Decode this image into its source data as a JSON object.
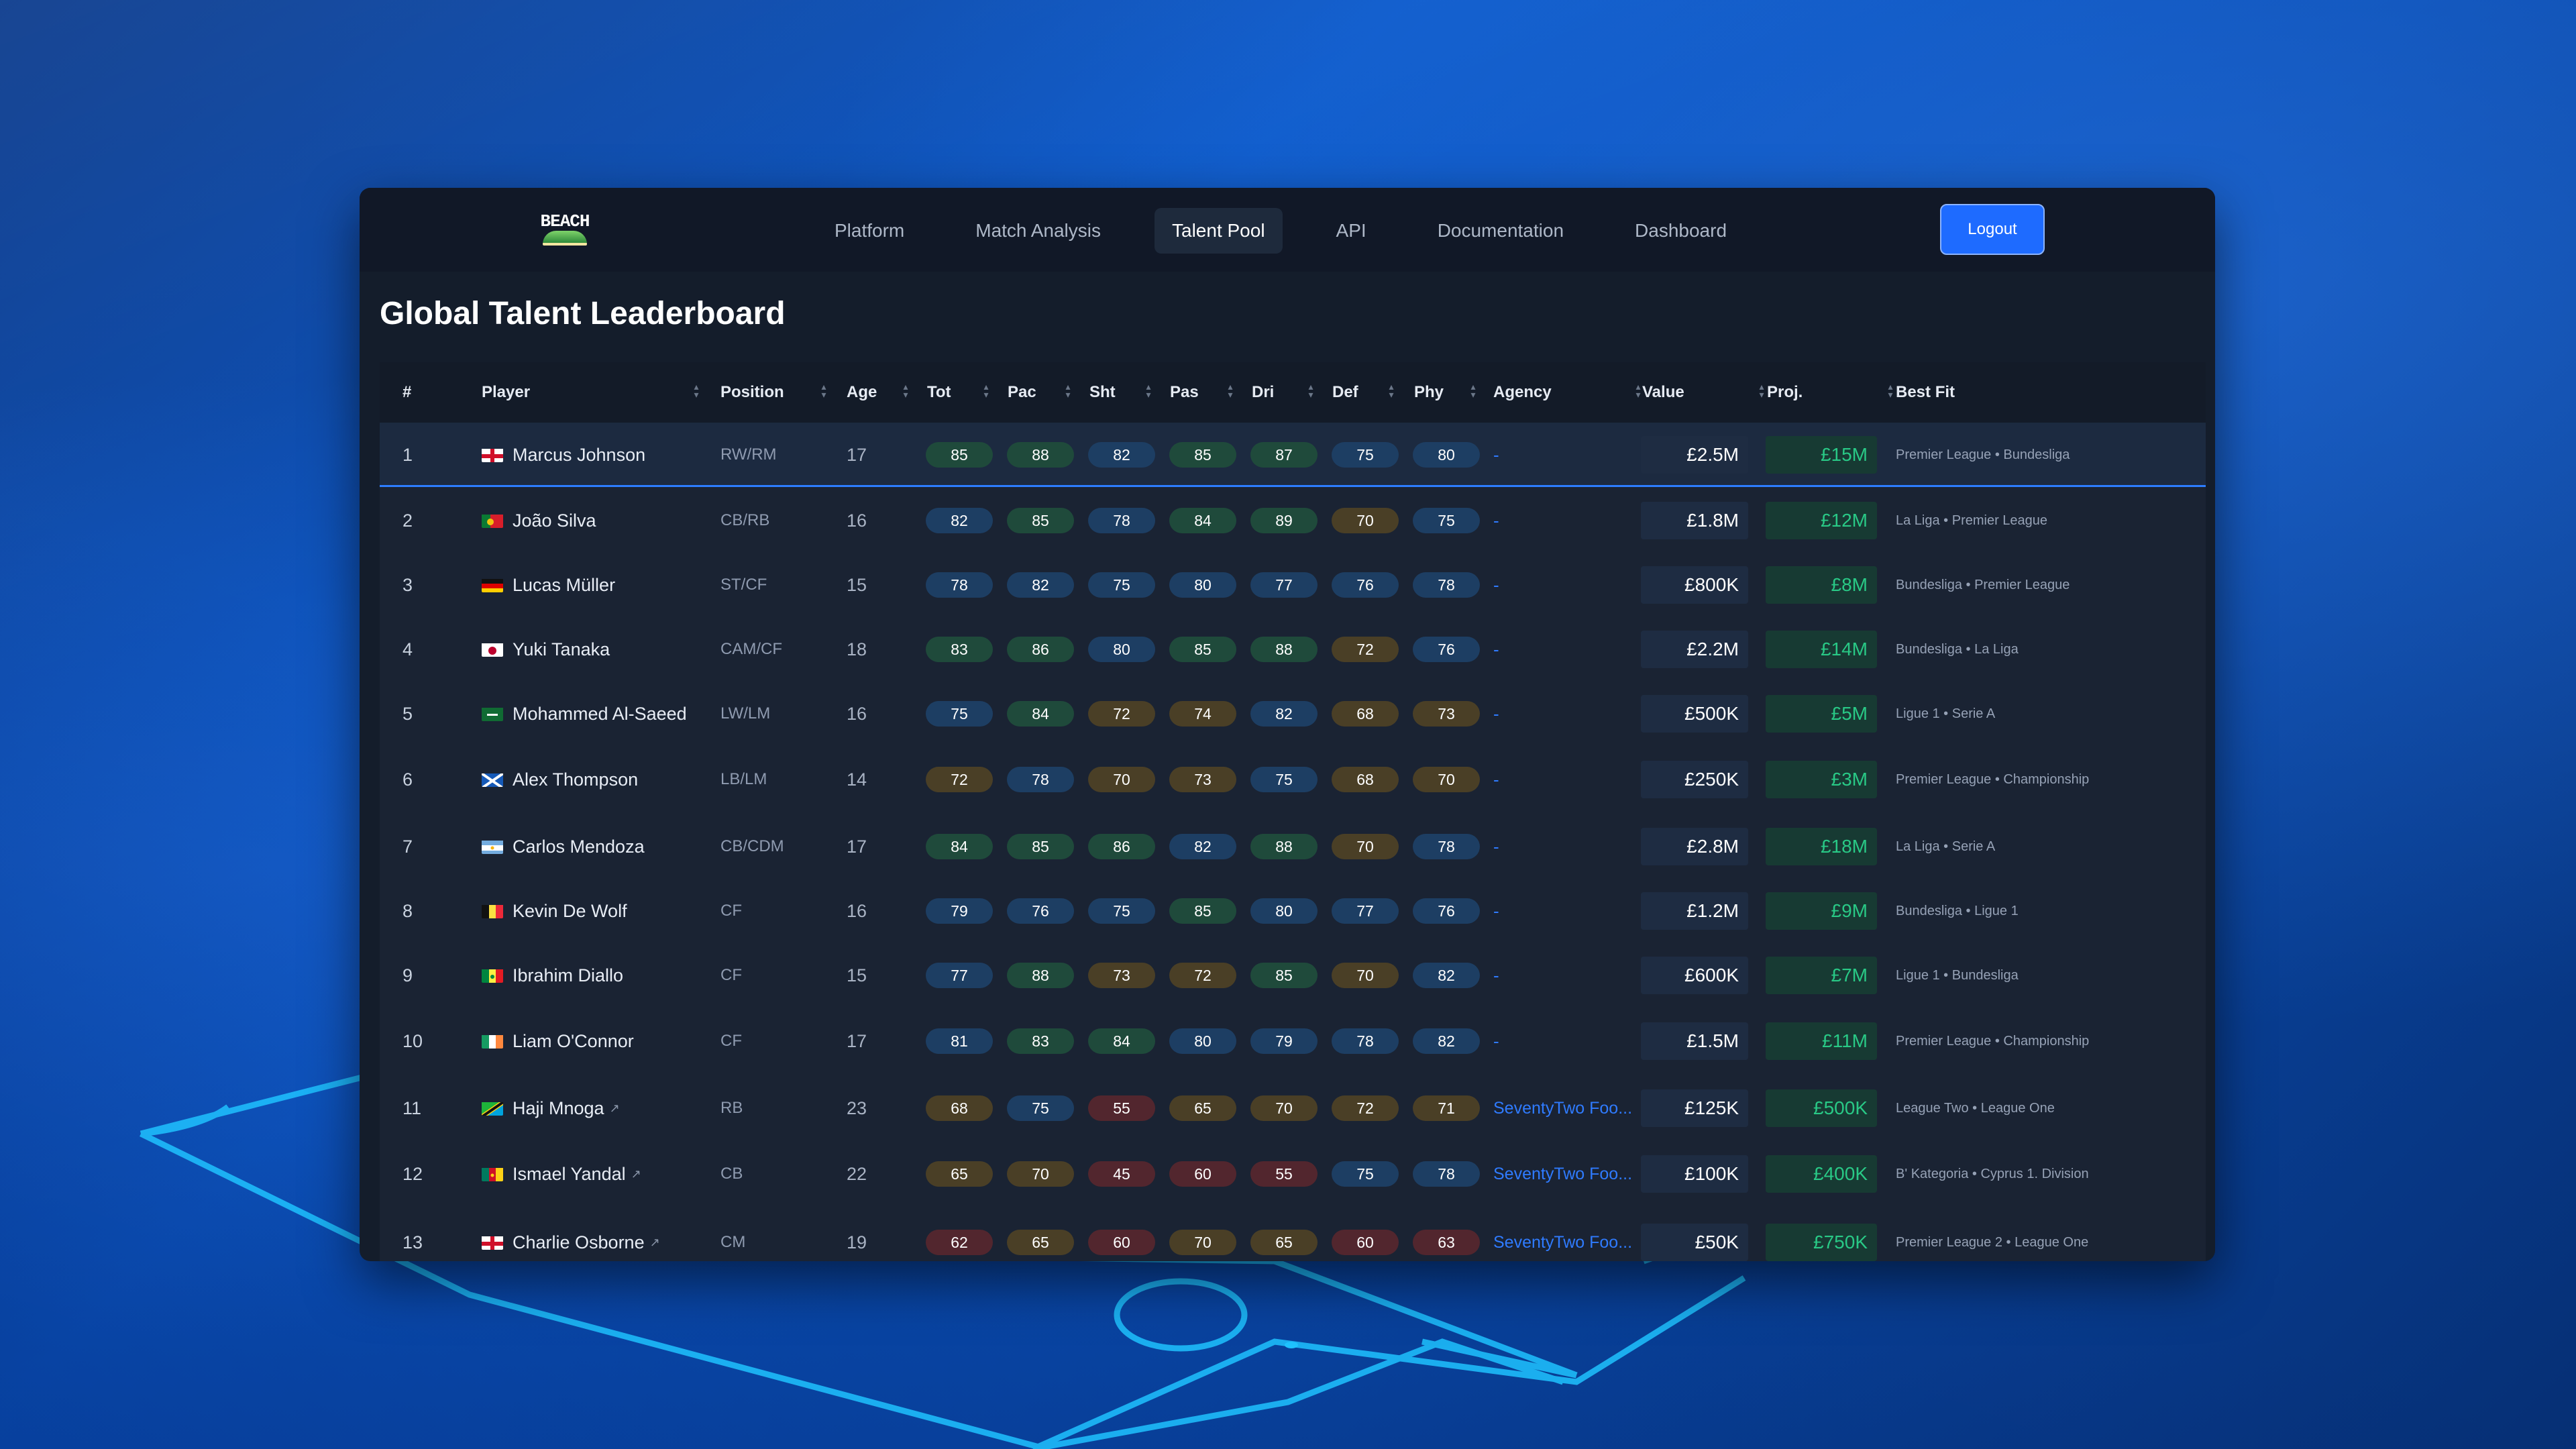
{
  "nav": {
    "logo_text": "BEACH",
    "links": [
      {
        "label": "Platform"
      },
      {
        "label": "Match Analysis"
      },
      {
        "label": "Talent Pool",
        "active": true
      },
      {
        "label": "API"
      },
      {
        "label": "Documentation"
      },
      {
        "label": "Dashboard"
      }
    ],
    "logout_label": "Logout"
  },
  "page": {
    "title": "Global Talent Leaderboard"
  },
  "table": {
    "headers": [
      "#",
      "Player",
      "Position",
      "Age",
      "Tot",
      "Pac",
      "Sht",
      "Pas",
      "Dri",
      "Def",
      "Phy",
      "Agency",
      "Value",
      "Proj.",
      "Best Fit"
    ],
    "rows": [
      {
        "rank": "1",
        "flag": "england",
        "name": "Marcus Johnson",
        "ext": false,
        "position": "RW/RM",
        "age": "17",
        "stats": [
          85,
          88,
          82,
          85,
          87,
          75,
          80
        ],
        "agency": "-",
        "value": "£2.5M",
        "proj": "£15M",
        "best_fit": "Premier League • Bundesliga"
      },
      {
        "rank": "2",
        "flag": "portugal",
        "name": "João Silva",
        "ext": false,
        "position": "CB/RB",
        "age": "16",
        "stats": [
          82,
          85,
          78,
          84,
          89,
          70,
          75
        ],
        "agency": "-",
        "value": "£1.8M",
        "proj": "£12M",
        "best_fit": "La Liga • Premier League"
      },
      {
        "rank": "3",
        "flag": "germany",
        "name": "Lucas Müller",
        "ext": false,
        "position": "ST/CF",
        "age": "15",
        "stats": [
          78,
          82,
          75,
          80,
          77,
          76,
          78
        ],
        "agency": "-",
        "value": "£800K",
        "proj": "£8M",
        "best_fit": "Bundesliga • Premier League"
      },
      {
        "rank": "4",
        "flag": "japan",
        "name": "Yuki Tanaka",
        "ext": false,
        "position": "CAM/CF",
        "age": "18",
        "stats": [
          83,
          86,
          80,
          85,
          88,
          72,
          76
        ],
        "agency": "-",
        "value": "£2.2M",
        "proj": "£14M",
        "best_fit": "Bundesliga • La Liga"
      },
      {
        "rank": "5",
        "flag": "saudi",
        "name": "Mohammed Al-Saeed",
        "ext": false,
        "position": "LW/LM",
        "age": "16",
        "stats": [
          75,
          84,
          72,
          74,
          82,
          68,
          73
        ],
        "agency": "-",
        "value": "£500K",
        "proj": "£5M",
        "best_fit": "Ligue 1 • Serie A"
      },
      {
        "rank": "6",
        "flag": "scotland",
        "name": "Alex Thompson",
        "ext": false,
        "position": "LB/LM",
        "age": "14",
        "stats": [
          72,
          78,
          70,
          73,
          75,
          68,
          70
        ],
        "agency": "-",
        "value": "£250K",
        "proj": "£3M",
        "best_fit": "Premier League • Championship"
      },
      {
        "rank": "7",
        "flag": "argentina",
        "name": "Carlos Mendoza",
        "ext": false,
        "position": "CB/CDM",
        "age": "17",
        "stats": [
          84,
          85,
          86,
          82,
          88,
          70,
          78
        ],
        "agency": "-",
        "value": "£2.8M",
        "proj": "£18M",
        "best_fit": "La Liga • Serie A"
      },
      {
        "rank": "8",
        "flag": "belgium",
        "name": "Kevin De Wolf",
        "ext": false,
        "position": "CF",
        "age": "16",
        "stats": [
          79,
          76,
          75,
          85,
          80,
          77,
          76
        ],
        "agency": "-",
        "value": "£1.2M",
        "proj": "£9M",
        "best_fit": "Bundesliga • Ligue 1"
      },
      {
        "rank": "9",
        "flag": "senegal",
        "name": "Ibrahim Diallo",
        "ext": false,
        "position": "CF",
        "age": "15",
        "stats": [
          77,
          88,
          73,
          72,
          85,
          70,
          82
        ],
        "agency": "-",
        "value": "£600K",
        "proj": "£7M",
        "best_fit": "Ligue 1 • Bundesliga"
      },
      {
        "rank": "10",
        "flag": "ireland",
        "name": "Liam O'Connor",
        "ext": false,
        "position": "CF",
        "age": "17",
        "stats": [
          81,
          83,
          84,
          80,
          79,
          78,
          82
        ],
        "agency": "-",
        "value": "£1.5M",
        "proj": "£11M",
        "best_fit": "Premier League • Championship"
      },
      {
        "rank": "11",
        "flag": "tanzania",
        "name": "Haji Mnoga",
        "ext": true,
        "position": "RB",
        "age": "23",
        "stats": [
          68,
          75,
          55,
          65,
          70,
          72,
          71
        ],
        "agency": "SeventyTwo Foo...",
        "value": "£125K",
        "proj": "£500K",
        "best_fit": "League Two • League One"
      },
      {
        "rank": "12",
        "flag": "cameroon",
        "name": "Ismael Yandal",
        "ext": true,
        "position": "CB",
        "age": "22",
        "stats": [
          65,
          70,
          45,
          60,
          55,
          75,
          78
        ],
        "agency": "SeventyTwo Foo...",
        "value": "£100K",
        "proj": "£400K",
        "best_fit": "B' Kategoria • Cyprus 1. Division"
      },
      {
        "rank": "13",
        "flag": "england",
        "name": "Charlie Osborne",
        "ext": true,
        "position": "CM",
        "age": "19",
        "stats": [
          62,
          65,
          60,
          70,
          65,
          60,
          63
        ],
        "agency": "SeventyTwo Foo...",
        "value": "£50K",
        "proj": "£750K",
        "best_fit": "Premier League 2 • League One"
      }
    ]
  },
  "colors": {
    "accent": "#1e6bff",
    "window_bg": "#141d2b",
    "proj_text": "#29c986"
  }
}
